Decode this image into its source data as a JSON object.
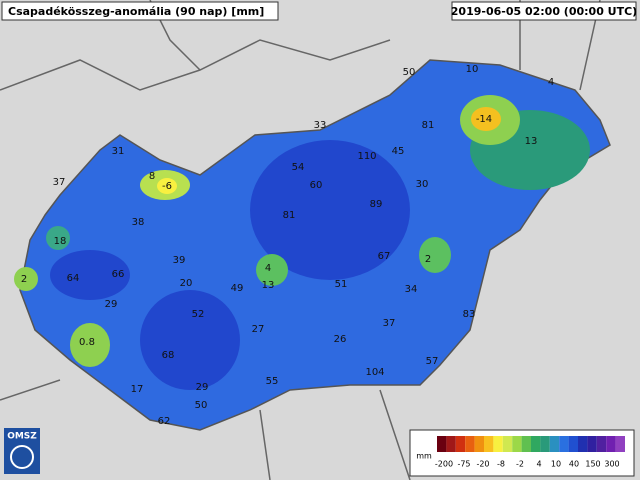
{
  "header": {
    "title": "Csapadékösszeg-anomália (90 nap) [mm]",
    "timestamp": "2019-06-05 02:00 (00:00 UTC)"
  },
  "stations": [
    50,
    10,
    4,
    33,
    81,
    -14,
    13,
    31,
    110,
    45,
    54,
    8,
    -6,
    37,
    60,
    30,
    89,
    81,
    38,
    18,
    67,
    2,
    39,
    4,
    64,
    66,
    2,
    20,
    13,
    51,
    49,
    34,
    29,
    52,
    83,
    37,
    27,
    26,
    0.8,
    68,
    57,
    104,
    55,
    17,
    29,
    50,
    62
  ],
  "legend": {
    "unit": "mm",
    "labels": [
      "-200",
      "-75",
      "-20",
      "-8",
      "-2",
      "4",
      "10",
      "40",
      "150",
      "300"
    ]
  },
  "logo": "OMSZ"
}
